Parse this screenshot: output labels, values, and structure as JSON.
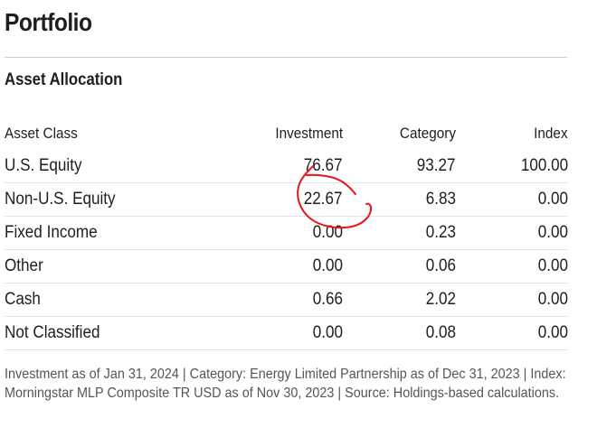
{
  "page": {
    "title": "Portfolio"
  },
  "section": {
    "title": "Asset Allocation"
  },
  "table": {
    "headers": {
      "asset_class": "Asset Class",
      "investment": "Investment",
      "category": "Category",
      "index": "Index"
    },
    "rows": [
      {
        "asset_class": "U.S. Equity",
        "investment": "76.67",
        "category": "93.27",
        "index": "100.00"
      },
      {
        "asset_class": "Non-U.S. Equity",
        "investment": "22.67",
        "category": "6.83",
        "index": "0.00"
      },
      {
        "asset_class": "Fixed Income",
        "investment": "0.00",
        "category": "0.23",
        "index": "0.00"
      },
      {
        "asset_class": "Other",
        "investment": "0.00",
        "category": "0.06",
        "index": "0.00"
      },
      {
        "asset_class": "Cash",
        "investment": "0.66",
        "category": "2.02",
        "index": "0.00"
      },
      {
        "asset_class": "Not Classified",
        "investment": "0.00",
        "category": "0.08",
        "index": "0.00"
      }
    ]
  },
  "footnote": "Investment as of Jan 31, 2024 | Category: Energy Limited Partnership as of Dec 31, 2023 | Index: Morningstar MLP Composite TR USD as of Nov 30, 2023 | Source: Holdings-based calculations.",
  "annotation": {
    "color": "#e8141c"
  }
}
